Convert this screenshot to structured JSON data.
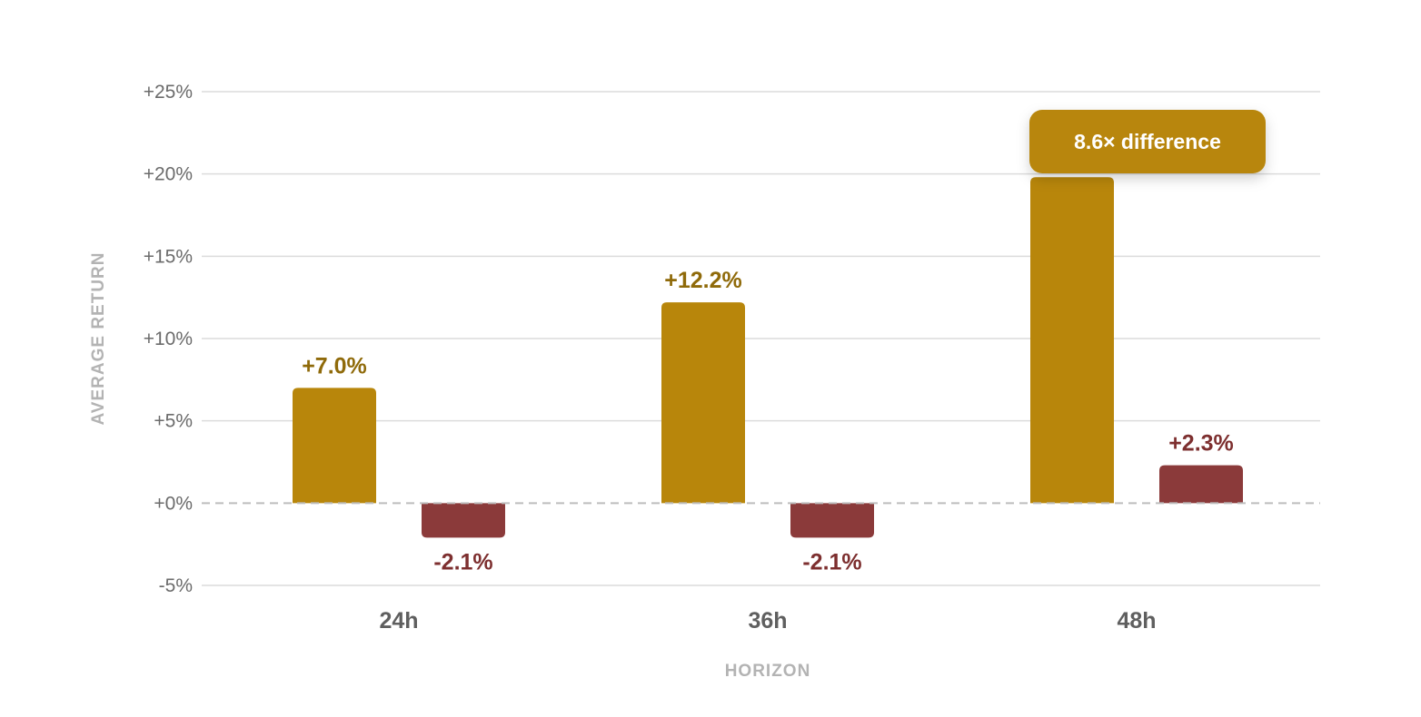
{
  "chart_data": {
    "type": "bar",
    "categories": [
      "24h",
      "36h",
      "48h"
    ],
    "series": [
      {
        "values": [
          7.0,
          12.2,
          19.8
        ],
        "labels": [
          "+7.0%",
          "+12.2%",
          ""
        ],
        "color": "#b8860b"
      },
      {
        "values": [
          -2.1,
          -2.1,
          2.3
        ],
        "labels": [
          "-2.1%",
          "-2.1%",
          "+2.3%"
        ],
        "color": "#8b3a3a"
      }
    ],
    "xlabel": "HORIZON",
    "ylabel": "AVERAGE RETURN",
    "ylim": [
      -5,
      25
    ],
    "yticks": [
      {
        "value": 25,
        "label": "+25%"
      },
      {
        "value": 20,
        "label": "+20%"
      },
      {
        "value": 15,
        "label": "+15%"
      },
      {
        "value": 10,
        "label": "+10%"
      },
      {
        "value": 5,
        "label": "+5%"
      },
      {
        "value": 0,
        "label": "+0%"
      },
      {
        "value": -5,
        "label": "-5%"
      }
    ],
    "grid": true,
    "zero_line": "dashed",
    "callout": {
      "text": "8.6× difference",
      "category": "48h",
      "color": "#b8860b"
    }
  }
}
